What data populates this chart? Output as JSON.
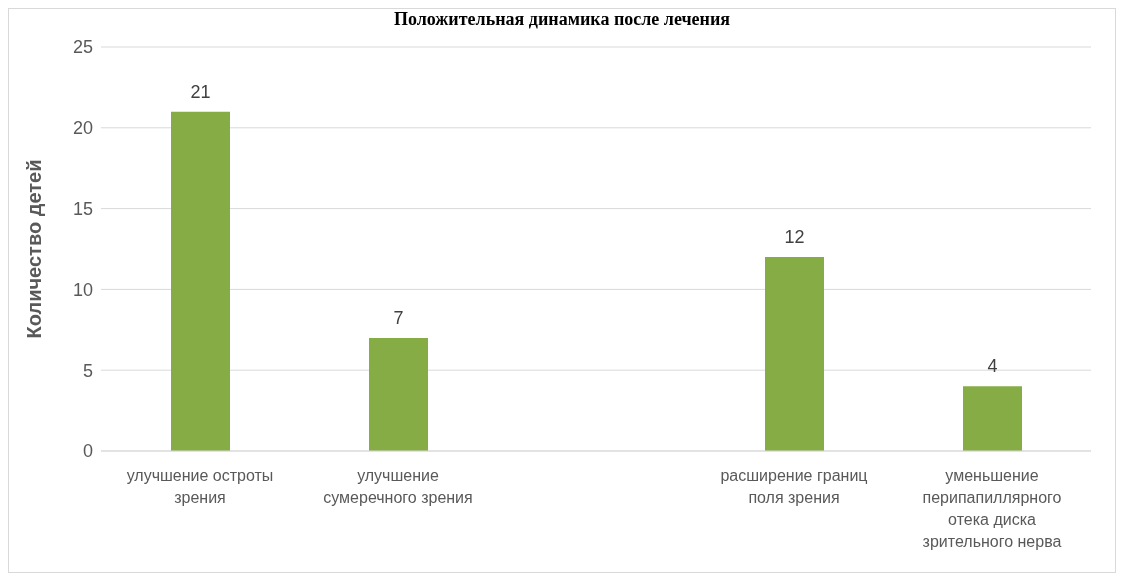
{
  "chart_data": {
    "type": "bar",
    "title": "Положительная динамика после лечения",
    "ylabel": "Количество детей",
    "categories": [
      "улучшение остроты зрения",
      "улучшение сумеречного зрения",
      null,
      "расширение границ поля зрения",
      "уменьшение перипапиллярного отека диска зрительного нерва"
    ],
    "values": [
      21,
      7,
      null,
      12,
      4
    ],
    "color": "#86ac46",
    "ylim": [
      0,
      25
    ],
    "yticks": [
      0,
      5,
      10,
      15,
      20,
      25
    ],
    "grid": "y",
    "data_labels": true
  }
}
